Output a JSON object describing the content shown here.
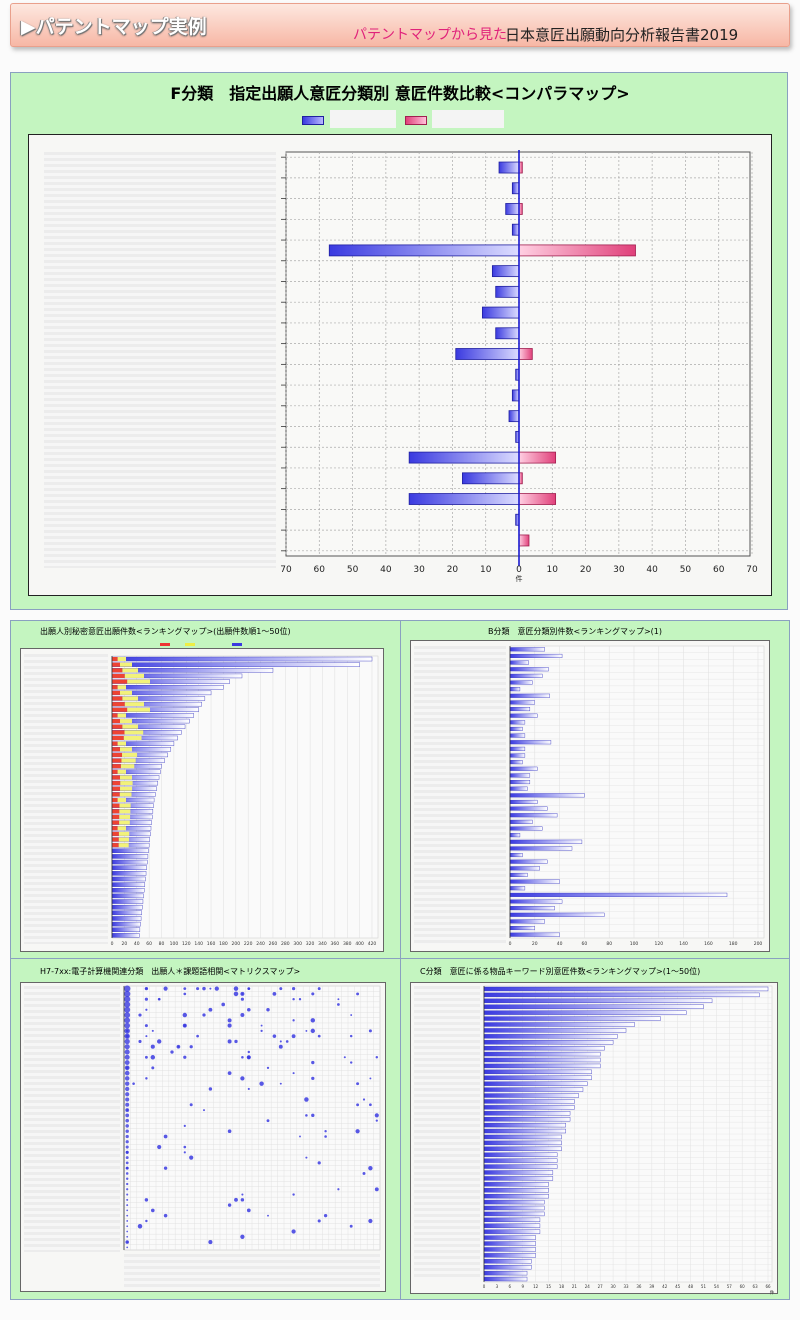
{
  "header": {
    "title": "▶パテントマップ実例",
    "subtitle": "パテントマップから見た",
    "report": "日本意匠出願動向分析報告書2019"
  },
  "main_chart": {
    "title": "F分類　指定出願人意匠分類別 意匠件数比較<コンパラマップ>",
    "unit_label": "件"
  },
  "small_charts": {
    "tl_title": "出願人別秘密意匠出願件数<ランキングマップ>(出願件数順1～50位)",
    "tr_title": "B分類　意匠分類別件数<ランキングマップ>(1)",
    "bl_title": "H7-7xx:電子計算機関連分類　出願人＊課題語相関<マトリクスマップ>",
    "br_title": "C分類　意匠に係る物品キーワード別意匠件数<ランキングマップ>(1～50位)",
    "unit_label": "件"
  },
  "colors": {
    "left_series": "#3a3ae0",
    "right_series": "#e0407a",
    "panel_bg": "#c4f5c0",
    "banner_bg": "#f7b7a5"
  },
  "chart_data": [
    {
      "type": "bar",
      "orientation": "horizontal-comparison",
      "title": "F分類　指定出願人意匠分類別 意匠件数比較<コンパラマップ>",
      "xlabel": "件",
      "xticks_left": [
        70,
        60,
        50,
        40,
        30,
        20,
        10,
        0
      ],
      "xticks_right": [
        10,
        20,
        30,
        40,
        50,
        60,
        70
      ],
      "xlim": [
        -70,
        70
      ],
      "series": [
        {
          "values": [
            6,
            2,
            4,
            2,
            57,
            8,
            7,
            11,
            7,
            19,
            1,
            2,
            3,
            1,
            33,
            17,
            33,
            1,
            0
          ]
        },
        {
          "values": [
            1,
            0,
            1,
            0,
            35,
            0,
            0,
            0,
            0,
            4,
            0,
            0,
            0,
            0,
            11,
            1,
            11,
            0,
            3
          ]
        }
      ],
      "grid": true
    },
    {
      "type": "bar",
      "title": "出願人別秘密意匠出願件数<ランキングマップ>(出願件数順1～50位)",
      "xticks": [
        0,
        20,
        40,
        60,
        80,
        100,
        120,
        140,
        160,
        180,
        200,
        220,
        240,
        260,
        280,
        300,
        320,
        340,
        360,
        380,
        400,
        420
      ],
      "values": [
        420,
        400,
        260,
        210,
        190,
        180,
        160,
        150,
        145,
        140,
        132,
        125,
        118,
        112,
        106,
        100,
        95,
        90,
        85,
        80,
        78,
        76,
        74,
        72,
        70,
        68,
        67,
        66,
        65,
        64,
        63,
        62,
        61,
        60,
        59,
        58,
        57,
        56,
        55,
        54,
        53,
        52,
        51,
        50,
        49,
        48,
        47,
        46,
        45,
        44
      ]
    },
    {
      "type": "bar",
      "title": "B分類　意匠分類別件数<ランキングマップ>(1)",
      "xticks": [
        0,
        20,
        40,
        60,
        80,
        100,
        120,
        140,
        160,
        180,
        200
      ],
      "values": [
        28,
        42,
        15,
        31,
        26,
        18,
        8,
        32,
        20,
        16,
        22,
        12,
        10,
        12,
        33,
        12,
        12,
        10,
        22,
        16,
        16,
        14,
        60,
        22,
        30,
        38,
        18,
        26,
        8,
        58,
        50,
        10,
        30,
        24,
        14,
        40,
        12,
        175,
        42,
        36,
        76,
        28,
        20,
        40
      ],
      "grid": true
    },
    {
      "type": "scatter",
      "title": "H7-7xx:電子計算機関連分類　出願人＊課題語相関<マトリクスマップ>",
      "grid": true
    },
    {
      "type": "bar",
      "title": "C分類　意匠に係る物品キーワード別意匠件数<ランキングマップ>(1～50位)",
      "xlabel": "件",
      "values": [
        66,
        64,
        53,
        51,
        47,
        41,
        35,
        33,
        31,
        30,
        28,
        27,
        27,
        27,
        25,
        25,
        24,
        23,
        22,
        21,
        21,
        20,
        20,
        19,
        19,
        18,
        18,
        18,
        17,
        17,
        17,
        16,
        16,
        15,
        15,
        15,
        14,
        14,
        14,
        13,
        13,
        13,
        12,
        12,
        12,
        12,
        11,
        11,
        10,
        10
      ],
      "grid": true
    }
  ]
}
